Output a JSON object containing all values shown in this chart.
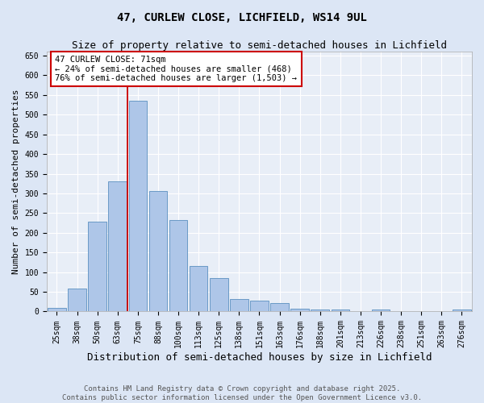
{
  "title1": "47, CURLEW CLOSE, LICHFIELD, WS14 9UL",
  "title2": "Size of property relative to semi-detached houses in Lichfield",
  "xlabel": "Distribution of semi-detached houses by size in Lichfield",
  "ylabel": "Number of semi-detached properties",
  "bar_labels": [
    "25sqm",
    "38sqm",
    "50sqm",
    "63sqm",
    "75sqm",
    "88sqm",
    "100sqm",
    "113sqm",
    "125sqm",
    "138sqm",
    "151sqm",
    "163sqm",
    "176sqm",
    "188sqm",
    "201sqm",
    "213sqm",
    "226sqm",
    "238sqm",
    "251sqm",
    "263sqm",
    "276sqm"
  ],
  "bar_values": [
    10,
    58,
    228,
    330,
    535,
    307,
    232,
    115,
    85,
    32,
    27,
    22,
    7,
    5,
    5,
    0,
    5,
    0,
    0,
    0,
    5
  ],
  "bar_color": "#aec6e8",
  "bar_edge_color": "#5a8fc0",
  "bar_edge_width": 0.6,
  "red_line_color": "#cc0000",
  "annotation_text": "47 CURLEW CLOSE: 71sqm\n← 24% of semi-detached houses are smaller (468)\n76% of semi-detached houses are larger (1,503) →",
  "annotation_box_color": "#ffffff",
  "annotation_box_edge": "#cc0000",
  "ylim": [
    0,
    660
  ],
  "yticks": [
    0,
    50,
    100,
    150,
    200,
    250,
    300,
    350,
    400,
    450,
    500,
    550,
    600,
    650
  ],
  "bg_color": "#e8eef7",
  "fig_bg_color": "#dce6f5",
  "footer1": "Contains HM Land Registry data © Crown copyright and database right 2025.",
  "footer2": "Contains public sector information licensed under the Open Government Licence v3.0.",
  "title1_fontsize": 10,
  "title2_fontsize": 9,
  "xlabel_fontsize": 9,
  "ylabel_fontsize": 8,
  "tick_fontsize": 7,
  "annotation_fontsize": 7.5,
  "footer_fontsize": 6.5
}
